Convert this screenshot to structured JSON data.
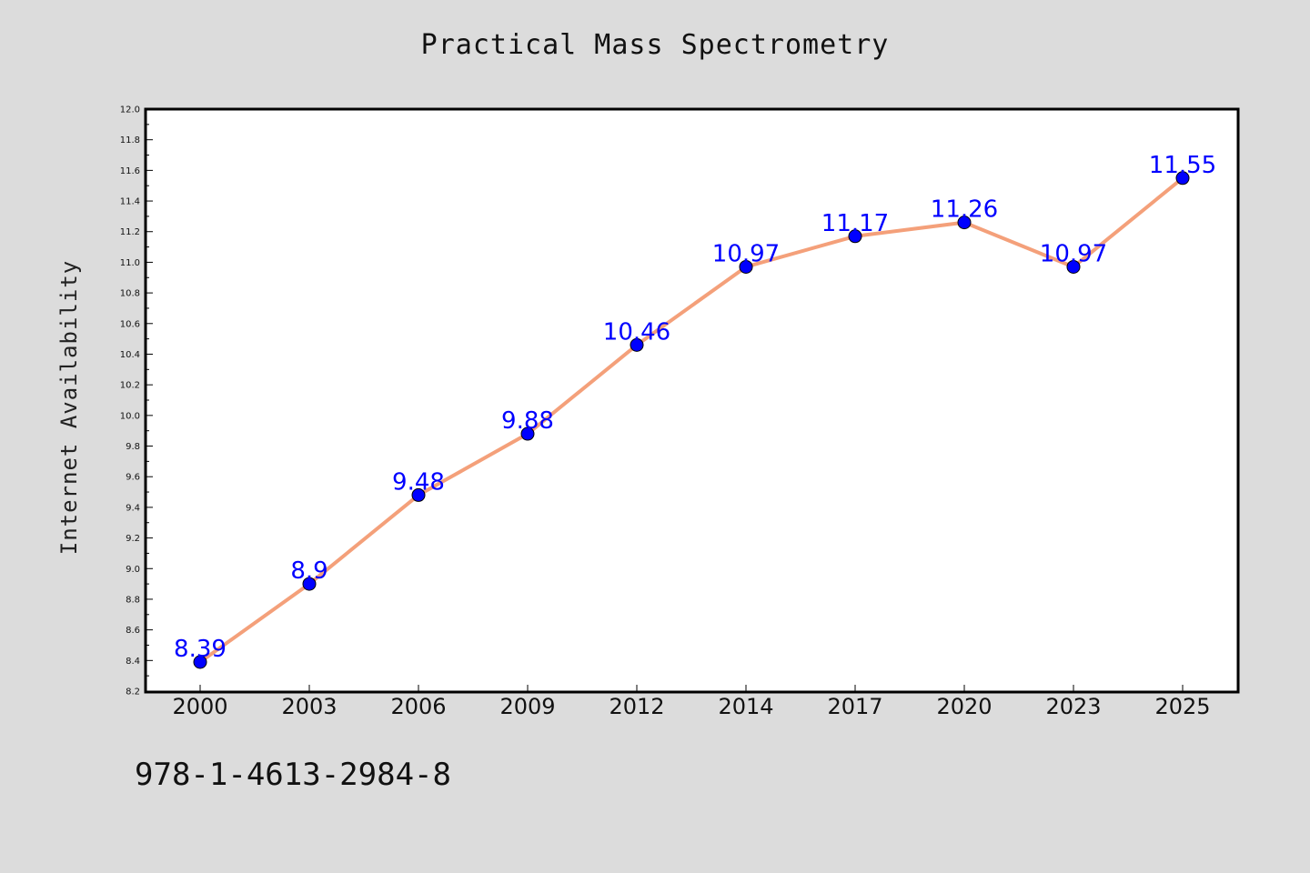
{
  "chart_data": {
    "type": "line",
    "title": "Practical Mass Spectrometry",
    "xlabel": "",
    "ylabel": "Internet Availability",
    "categories": [
      "2000",
      "2003",
      "2006",
      "2009",
      "2012",
      "2014",
      "2017",
      "2020",
      "2023",
      "2025"
    ],
    "series": [
      {
        "values": [
          8.39,
          8.9,
          9.48,
          9.88,
          10.46,
          10.97,
          11.17,
          11.26,
          10.97,
          11.55
        ],
        "line_color": "#f4a07a",
        "marker_color": "#0000ff"
      }
    ],
    "data_labels": [
      "8.39",
      "8.9",
      "9.48",
      "9.88",
      "10.46",
      "10.97",
      "11.17",
      "11.26",
      "10.97",
      "11.55"
    ],
    "ylim": [
      8.2,
      12.0
    ],
    "yticks": [
      "8.2",
      "8.4",
      "8.6",
      "8.8",
      "9.0",
      "9.2",
      "9.4",
      "9.6",
      "9.8",
      "10.0",
      "10.2",
      "10.4",
      "10.6",
      "10.8",
      "11.0",
      "11.2",
      "11.4",
      "11.6",
      "11.8",
      "12.0"
    ],
    "grid": false,
    "legend": "none"
  },
  "footer": {
    "isbn": "978-1-4613-2984-8"
  }
}
